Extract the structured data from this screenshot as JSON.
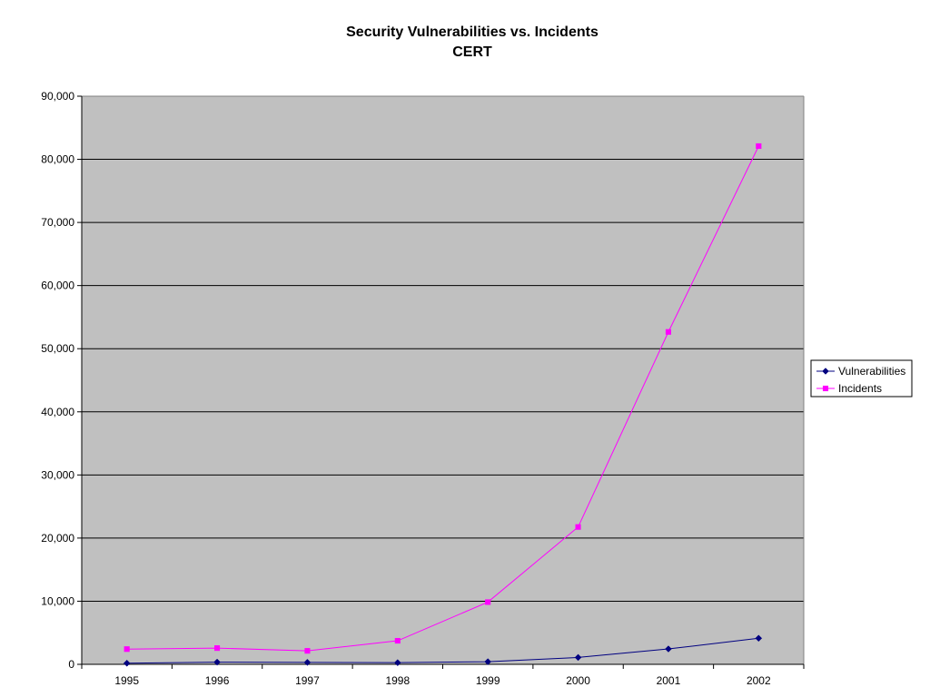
{
  "chart_data": {
    "type": "line",
    "title": "Security Vulnerabilities vs. Incidents",
    "subtitle": "CERT",
    "xlabel": "",
    "ylabel": "",
    "categories": [
      "1995",
      "1996",
      "1997",
      "1998",
      "1999",
      "2000",
      "2001",
      "2002"
    ],
    "series": [
      {
        "name": "Vulnerabilities",
        "color": "#000080",
        "marker": "diamond",
        "values": [
          171,
          345,
          311,
          262,
          417,
          1090,
          2437,
          4129
        ]
      },
      {
        "name": "Incidents",
        "color": "#ff00ff",
        "marker": "square",
        "values": [
          2412,
          2573,
          2134,
          3734,
          9859,
          21756,
          52658,
          82094
        ]
      }
    ],
    "ylim": [
      0,
      90000
    ],
    "yticks": [
      0,
      10000,
      20000,
      30000,
      40000,
      50000,
      60000,
      70000,
      80000,
      90000
    ],
    "ytick_labels": [
      "0",
      "10,000",
      "20,000",
      "30,000",
      "40,000",
      "50,000",
      "60,000",
      "70,000",
      "80,000",
      "90,000"
    ],
    "grid": true,
    "plot_background": "#c0c0c0",
    "legend": "right"
  }
}
